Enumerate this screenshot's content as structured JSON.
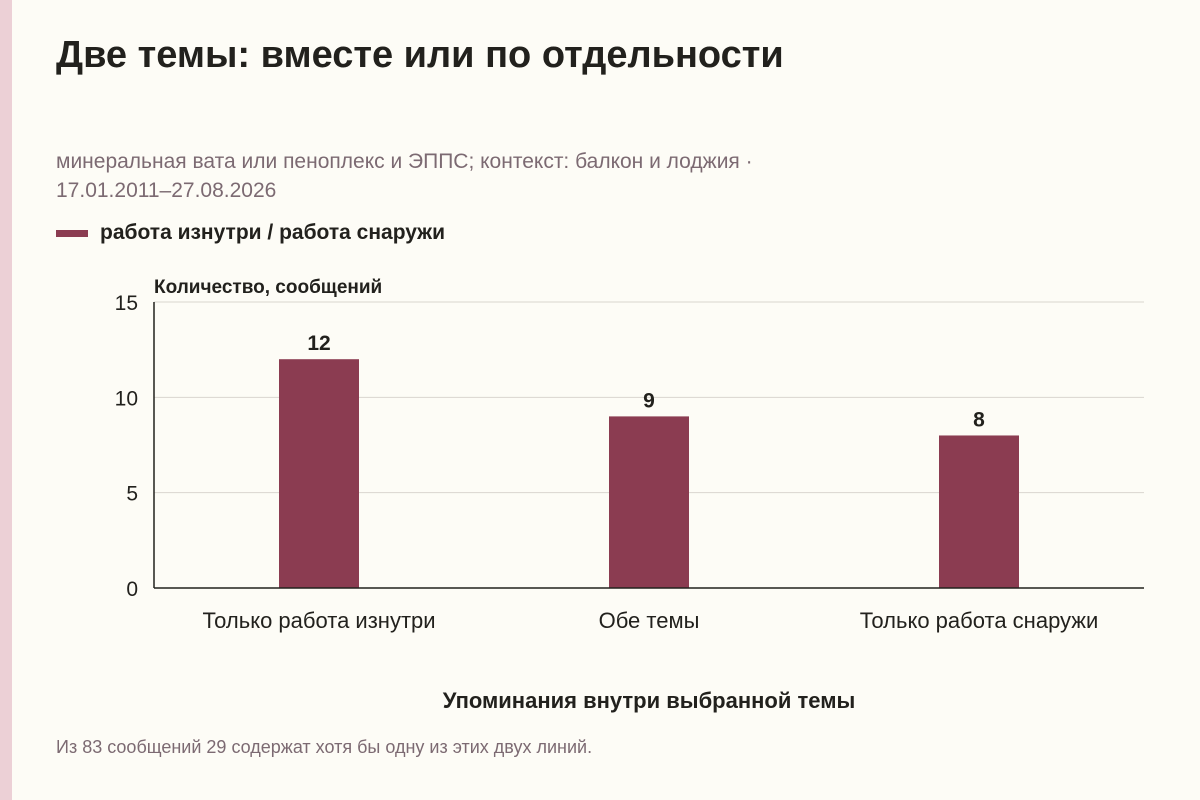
{
  "header": {
    "title": "Две темы: вместе или по отдельности",
    "subtitle_line1": "минеральная вата или пеноплекс и ЭППС; контекст: балкон и лоджия ·",
    "subtitle_line2": "17.01.2011–27.08.2026"
  },
  "legend": {
    "label": "работа изнутри / работа снаружи"
  },
  "chart_data": {
    "type": "bar",
    "title": "Две темы: вместе или по отдельности",
    "ylabel": "Количество, сообщений",
    "xlabel": "Упоминания внутри выбранной темы",
    "categories": [
      "Только работа изнутри",
      "Обе темы",
      "Только работа снаружи"
    ],
    "series": [
      {
        "name": "работа изнутри / работа снаружи",
        "values": [
          12,
          9,
          8
        ]
      }
    ],
    "ylim": [
      0,
      15
    ],
    "yticks": [
      0,
      5,
      10,
      15
    ],
    "grid": true,
    "legend_position": "top-left",
    "bar_color": "#8b3c51"
  },
  "footnote": "Из 83 сообщений 29 содержат хотя бы одну из этих двух линий."
}
